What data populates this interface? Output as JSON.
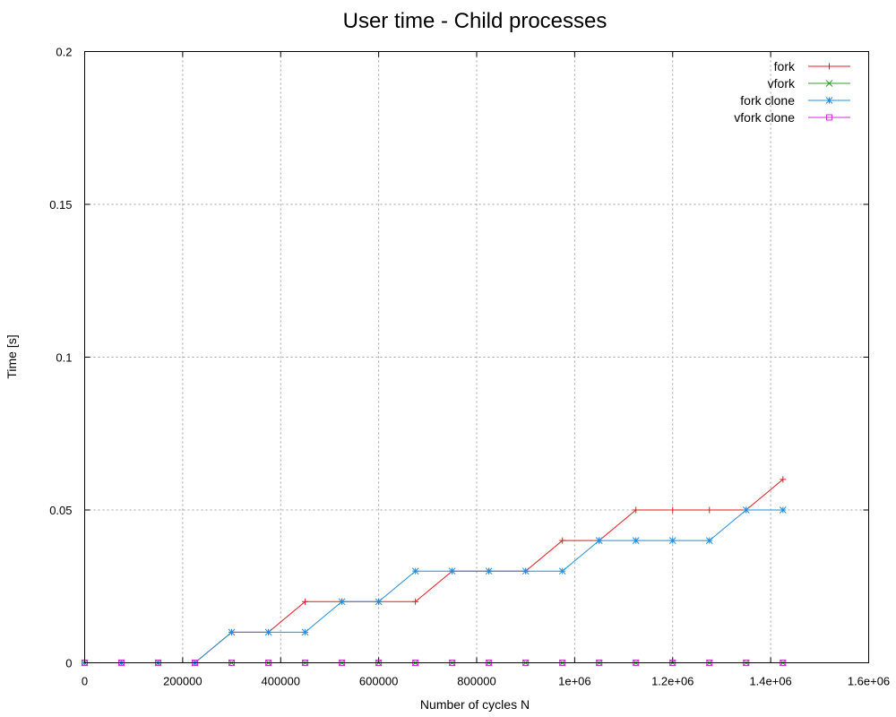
{
  "chart_data": {
    "type": "line",
    "title": "User time - Child processes",
    "xlabel": "Number of cycles N",
    "ylabel": "Time [s]",
    "xlim": [
      0,
      1600000
    ],
    "ylim": [
      0,
      0.2
    ],
    "xticks": [
      0,
      200000,
      400000,
      600000,
      800000,
      1000000,
      1200000,
      1400000,
      1600000
    ],
    "xtick_labels": [
      "0",
      "200000",
      "400000",
      "600000",
      "800000",
      "1e+06",
      "1.2e+06",
      "1.4e+06",
      "1.6e+06"
    ],
    "yticks": [
      0,
      0.05,
      0.1,
      0.15,
      0.2
    ],
    "ytick_labels": [
      "0",
      "0.05",
      "0.1",
      "0.15",
      "0.2"
    ],
    "grid": true,
    "legend_position": "top-right",
    "x": [
      0,
      75000,
      150000,
      225000,
      300000,
      375000,
      450000,
      525000,
      600000,
      675000,
      750000,
      825000,
      900000,
      975000,
      1050000,
      1125000,
      1200000,
      1275000,
      1350000,
      1425000
    ],
    "series": [
      {
        "name": "fork",
        "color": "#e41a1c",
        "marker": "plus",
        "values": [
          0,
          0,
          0,
          0,
          0.01,
          0.01,
          0.02,
          0.02,
          0.02,
          0.02,
          0.03,
          0.03,
          0.03,
          0.04,
          0.04,
          0.05,
          0.05,
          0.05,
          0.05,
          0.06
        ]
      },
      {
        "name": "vfork",
        "color": "#2ca02c",
        "marker": "cross",
        "values": [
          0,
          0,
          0,
          0,
          0,
          0,
          0,
          0,
          0,
          0,
          0,
          0,
          0,
          0,
          0,
          0,
          0,
          0,
          0,
          0
        ]
      },
      {
        "name": "fork clone",
        "color": "#1f8fdf",
        "marker": "star",
        "values": [
          0,
          0,
          0,
          0,
          0.01,
          0.01,
          0.01,
          0.02,
          0.02,
          0.03,
          0.03,
          0.03,
          0.03,
          0.03,
          0.04,
          0.04,
          0.04,
          0.04,
          0.05,
          0.05
        ]
      },
      {
        "name": "vfork clone",
        "color": "#cc33cc",
        "marker": "square",
        "values": [
          0,
          0,
          0,
          0,
          0,
          0,
          0,
          0,
          0,
          0,
          0,
          0,
          0,
          0,
          0,
          0,
          0,
          0,
          0,
          0
        ]
      }
    ]
  }
}
